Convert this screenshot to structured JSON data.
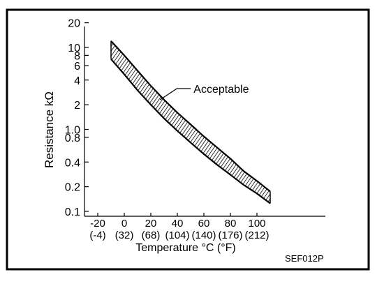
{
  "chart_data": {
    "type": "area",
    "title": "",
    "xlabel": "Temperature °C (°F)",
    "ylabel": "Resistance kΩ",
    "y_scale": "log",
    "xlim": [
      -30,
      135
    ],
    "ylim": [
      0.1,
      20
    ],
    "grid": false,
    "x_ticks": [
      {
        "c": -20,
        "label": "-20",
        "sub": "(-4)"
      },
      {
        "c": 0,
        "label": "0",
        "sub": "(32)"
      },
      {
        "c": 20,
        "label": "20",
        "sub": "(68)"
      },
      {
        "c": 40,
        "label": "40",
        "sub": "(104)"
      },
      {
        "c": 60,
        "label": "60",
        "sub": "(140)"
      },
      {
        "c": 80,
        "label": "80",
        "sub": "(176)"
      },
      {
        "c": 100,
        "label": "100",
        "sub": "(212)"
      }
    ],
    "y_ticks": [
      {
        "v": 0.1,
        "label": "0.1"
      },
      {
        "v": 0.2,
        "label": "0.2"
      },
      {
        "v": 0.4,
        "label": "0.4"
      },
      {
        "v": 0.8,
        "label": "0.8"
      },
      {
        "v": 1.0,
        "label": "1.0"
      },
      {
        "v": 2,
        "label": "2"
      },
      {
        "v": 4,
        "label": "4"
      },
      {
        "v": 6,
        "label": "6"
      },
      {
        "v": 8,
        "label": "8"
      },
      {
        "v": 10,
        "label": "10"
      },
      {
        "v": 20,
        "label": "20"
      }
    ],
    "series": [
      {
        "name": "Acceptable",
        "x": [
          -10,
          0,
          10,
          20,
          30,
          40,
          50,
          60,
          70,
          80,
          90,
          100,
          110
        ],
        "upper": [
          12.0,
          8.0,
          5.2,
          3.4,
          2.3,
          1.6,
          1.15,
          0.82,
          0.6,
          0.44,
          0.31,
          0.235,
          0.175
        ],
        "lower": [
          7.2,
          4.7,
          3.0,
          2.0,
          1.36,
          0.96,
          0.69,
          0.5,
          0.37,
          0.28,
          0.21,
          0.165,
          0.125
        ]
      }
    ],
    "annotations": [
      {
        "text": "Acceptable",
        "x": 27,
        "y": 2.3
      }
    ]
  },
  "footer": {
    "code": "SEF012P"
  }
}
